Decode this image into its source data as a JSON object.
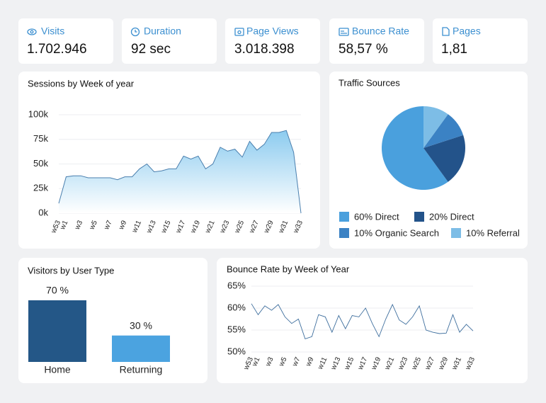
{
  "kpis": [
    {
      "label": "Visits",
      "value": "1.702.946"
    },
    {
      "label": "Duration",
      "value": "92 sec"
    },
    {
      "label": "Page Views",
      "value": "3.018.398"
    },
    {
      "label": "Bounce Rate",
      "value": "58,57 %"
    },
    {
      "label": "Pages",
      "value": "1,81"
    }
  ],
  "chart_data": [
    {
      "type": "area",
      "title": "Sessions by Week of year",
      "color": "#4a7fae",
      "fill": "#8ccbef",
      "categories": [
        "w53",
        "w1",
        null,
        "w3",
        null,
        "w5",
        null,
        "w7",
        null,
        "w9",
        null,
        "w11",
        null,
        "w13",
        null,
        "w15",
        null,
        "w17",
        null,
        "w19",
        null,
        "w21",
        null,
        "w23",
        null,
        "w25",
        null,
        "w27",
        null,
        "w29",
        null,
        "w31",
        null,
        "w33"
      ],
      "values": [
        10000,
        37000,
        38000,
        38000,
        36000,
        36000,
        36000,
        36000,
        34000,
        37000,
        37000,
        45000,
        50000,
        42000,
        43000,
        45000,
        45000,
        58000,
        55000,
        58000,
        45000,
        50000,
        67000,
        63000,
        65000,
        57000,
        73000,
        64000,
        70000,
        82000,
        82000,
        84000,
        62000,
        0
      ],
      "ylim": [
        0,
        100000
      ],
      "yticks": [
        {
          "value": 0,
          "label": "0k"
        },
        {
          "value": 25000,
          "label": "25k"
        },
        {
          "value": 50000,
          "label": "50k"
        },
        {
          "value": 75000,
          "label": "75k"
        },
        {
          "value": 100000,
          "label": "100k"
        }
      ],
      "grid": true
    },
    {
      "type": "pie",
      "title": "Traffic Sources",
      "series": [
        {
          "name": "60% Direct",
          "value": 60,
          "color": "#4aa0dd"
        },
        {
          "name": "20% Direct",
          "value": 20,
          "color": "#23538a"
        },
        {
          "name": "10% Organic Search",
          "value": 10,
          "color": "#3b82c4"
        },
        {
          "name": "10% Referral",
          "value": 10,
          "color": "#7dbde6"
        }
      ]
    },
    {
      "type": "bar",
      "title": "Visitors by User Type",
      "categories": [
        "Home",
        "Returning"
      ],
      "values": [
        70,
        30
      ],
      "value_labels": [
        "70 %",
        "30 %"
      ],
      "colors": [
        "#245787",
        "#4ba3e0"
      ]
    },
    {
      "type": "line",
      "title": "Bounce Rate by Week of Year",
      "color": "#3f6f9e",
      "categories": [
        "w53",
        "w1",
        null,
        "w3",
        null,
        "w5",
        null,
        "w7",
        null,
        "w9",
        null,
        "w11",
        null,
        "w13",
        null,
        "w15",
        null,
        "w17",
        null,
        "w19",
        null,
        "w21",
        null,
        "w23",
        null,
        "w25",
        null,
        "w27",
        null,
        "w29",
        null,
        "w31",
        null,
        "w33"
      ],
      "values": [
        61,
        58.5,
        60.5,
        59.5,
        60.8,
        58,
        56.5,
        57.5,
        53,
        53.5,
        58.5,
        58,
        54.5,
        58.3,
        55.3,
        58.3,
        58,
        60,
        56.5,
        53.5,
        57.5,
        60.8,
        57.3,
        56.3,
        58,
        60.5,
        55,
        54.5,
        54.2,
        54.3,
        58.5,
        54.5,
        56.3,
        54.8
      ],
      "ylim": [
        50,
        65
      ],
      "yticks": [
        {
          "value": 50,
          "label": "50%"
        },
        {
          "value": 55,
          "label": "55%"
        },
        {
          "value": 60,
          "label": "60%"
        },
        {
          "value": 65,
          "label": "65%"
        }
      ],
      "grid": true
    }
  ]
}
